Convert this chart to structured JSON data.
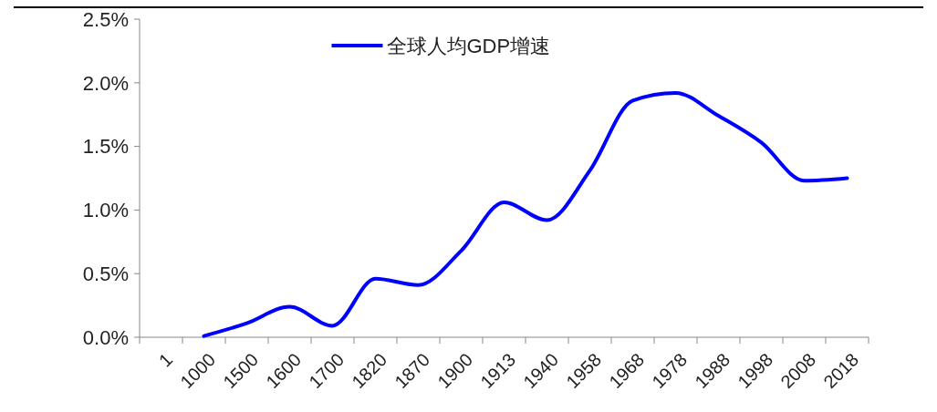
{
  "chart_data": {
    "type": "line",
    "categories": [
      "1",
      "1000",
      "1500",
      "1600",
      "1700",
      "1820",
      "1870",
      "1900",
      "1913",
      "1940",
      "1958",
      "1968",
      "1978",
      "1988",
      "1998",
      "2008",
      "2018"
    ],
    "series": [
      {
        "name": "全球人均GDP增速",
        "color": "#0000ff",
        "values": [
          null,
          0.01,
          0.11,
          0.24,
          0.09,
          0.46,
          0.41,
          0.68,
          1.06,
          0.92,
          1.31,
          1.86,
          1.92,
          1.74,
          1.53,
          1.23,
          1.25
        ]
      }
    ],
    "ylim": [
      0,
      2.5
    ],
    "yticks": [
      {
        "value": 0,
        "label": "0.0%"
      },
      {
        "value": 0.5,
        "label": "0.5%"
      },
      {
        "value": 1,
        "label": "1.0%"
      },
      {
        "value": 1.5,
        "label": "1.5%"
      },
      {
        "value": 2,
        "label": "2.0%"
      },
      {
        "value": 2.5,
        "label": "2.5%"
      }
    ],
    "grid": false,
    "legend": "top",
    "marker": "none",
    "line_style": "solid"
  }
}
